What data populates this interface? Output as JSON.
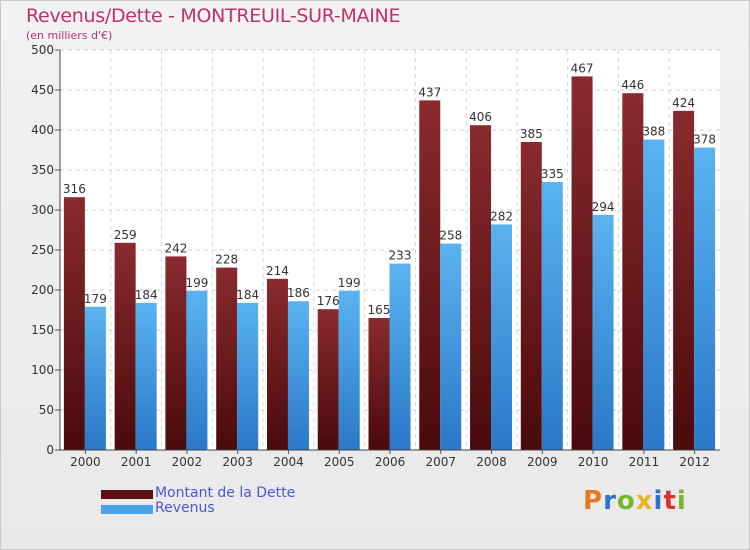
{
  "title": "Revenus/Dette - MONTREUIL-SUR-MAINE",
  "subtitle": "(en milliers d'€)",
  "logo": {
    "letters": [
      "P",
      "r",
      "o",
      "x",
      "i",
      "t",
      "i"
    ],
    "colors": [
      "#e87a1e",
      "#2a74c9",
      "#7ab52e",
      "#e8b61e",
      "#2a74c9",
      "#d9342b",
      "#7ab52e"
    ]
  },
  "chart_data": {
    "type": "bar",
    "categories": [
      "2000",
      "2001",
      "2002",
      "2003",
      "2004",
      "2005",
      "2006",
      "2007",
      "2008",
      "2009",
      "2010",
      "2011",
      "2012"
    ],
    "series": [
      {
        "name": "Montant de la Dette",
        "color": "#7a1c1f",
        "values": [
          316,
          259,
          242,
          228,
          214,
          176,
          165,
          437,
          406,
          385,
          467,
          446,
          424
        ]
      },
      {
        "name": "Revenus",
        "color": "#4aa3e6",
        "values": [
          179,
          184,
          199,
          184,
          186,
          199,
          233,
          258,
          282,
          335,
          294,
          388,
          378
        ]
      }
    ],
    "ylim": [
      0,
      500
    ],
    "yticks": [
      0,
      50,
      100,
      150,
      200,
      250,
      300,
      350,
      400,
      450,
      500
    ],
    "grid": true,
    "legend_position": "bottom-left"
  }
}
